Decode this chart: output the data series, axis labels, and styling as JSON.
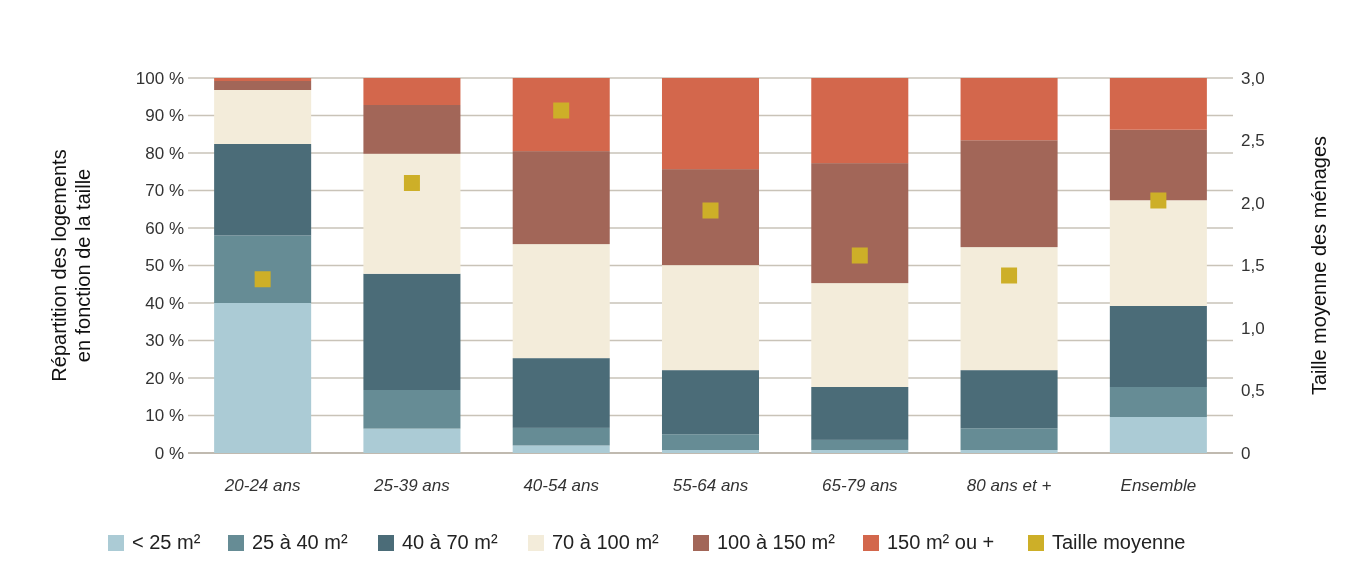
{
  "chart_data": {
    "type": "bar",
    "stacked": true,
    "categories": [
      "20-24 ans",
      "25-39 ans",
      "40-54 ans",
      "55-64 ans",
      "65-79 ans",
      "80 ans et +",
      "Ensemble"
    ],
    "ylabel": "Répartition des logements\nen fonction de la taille",
    "y2label": "Taille moyenne des ménages",
    "ylim": [
      0,
      100
    ],
    "yticks": [
      {
        "value": 0,
        "label": "0 %"
      },
      {
        "value": 10,
        "label": "10 %"
      },
      {
        "value": 20,
        "label": "20 %"
      },
      {
        "value": 30,
        "label": "30 %"
      },
      {
        "value": 40,
        "label": "40 %"
      },
      {
        "value": 50,
        "label": "50 %"
      },
      {
        "value": 60,
        "label": "60 %"
      },
      {
        "value": 70,
        "label": "70 %"
      },
      {
        "value": 80,
        "label": "80 %"
      },
      {
        "value": 90,
        "label": "90 %"
      },
      {
        "value": 100,
        "label": "100 %"
      }
    ],
    "y2lim": [
      0,
      3
    ],
    "y2ticks": [
      0,
      {
        "value": 0.5,
        "label": "0,5"
      },
      {
        "value": 1,
        "label": "1,0"
      },
      {
        "value": 1.5,
        "label": "1,5"
      },
      {
        "value": 2,
        "label": "2,0"
      },
      {
        "value": 2.5,
        "label": "2,5"
      },
      {
        "value": 3,
        "label": "3,0"
      }
    ],
    "grid": "y",
    "legend": "bottom",
    "series": [
      {
        "name": "< 25 m²",
        "color": "#abcbd5",
        "values": [
          40,
          6.5,
          2,
          0.8,
          0.8,
          0.8,
          9.6
        ]
      },
      {
        "name": "25 à 40 m²",
        "color": "#668c95",
        "values": [
          18,
          10.3,
          4.7,
          4.2,
          2.7,
          5.8,
          8
        ]
      },
      {
        "name": "40 à 70 m²",
        "color": "#4b6c78",
        "values": [
          24.4,
          31,
          18.6,
          17.1,
          14.1,
          15.5,
          21.6
        ]
      },
      {
        "name": "70 à 100 m²",
        "color": "#f3ecda",
        "values": [
          14.4,
          32,
          30.4,
          28,
          27.7,
          32.8,
          28.2
        ]
      },
      {
        "name": "100 à 150 m²",
        "color": "#a26658",
        "values": [
          2.4,
          13,
          24.8,
          25.6,
          32,
          28.5,
          18.8
        ]
      },
      {
        "name": "150 m² ou +",
        "color": "#d3674c",
        "values": [
          0.8,
          7.2,
          19.5,
          24.3,
          22.7,
          16.6,
          13.8
        ]
      },
      {
        "name": "Taille moyenne",
        "color": "#cdaf28",
        "type": "scatter",
        "axis": "y2",
        "marker": "square",
        "values": [
          1.39,
          2.16,
          2.74,
          1.94,
          1.58,
          1.42,
          2.02
        ]
      }
    ]
  }
}
